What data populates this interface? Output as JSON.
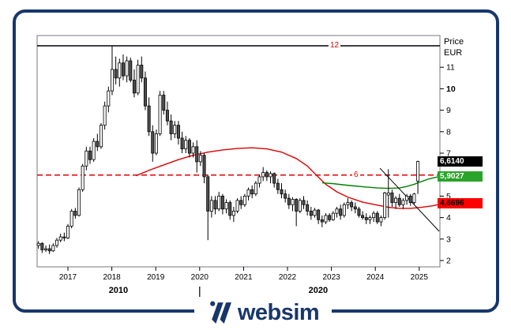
{
  "header": {
    "price_label": "Price",
    "currency_label": "EUR"
  },
  "footer": {
    "brand": "websim"
  },
  "colors": {
    "frame_navy": "#17376b",
    "plot_border": "#8e8e9a",
    "red": "#e00000",
    "green_line": "#008000",
    "candle_down_fill": "#4f4f4f",
    "candle_up_fill": "#ffffff"
  },
  "chart_data": {
    "type": "candlestick",
    "title": "",
    "unit": "EUR",
    "start_month": "2016-05",
    "y_axis": {
      "label": "Price",
      "unit": "EUR",
      "ticks": [
        11,
        10,
        9,
        8,
        7,
        5,
        4,
        3,
        2
      ],
      "bold_tick": 10,
      "range": [
        1.8,
        12.5
      ],
      "grid": false
    },
    "x_axis": {
      "year_ticks": [
        2017,
        2018,
        2019,
        2020,
        2021,
        2022,
        2023,
        2024,
        2025
      ],
      "decade_row": [
        {
          "label": "2010",
          "center_year": 2018.15
        },
        {
          "label": "2020",
          "center_year": 2022.7
        }
      ],
      "decade_tick_year": 2020
    },
    "levels": [
      {
        "label": "12",
        "value": 12,
        "style": "solid",
        "line_color": "#000000",
        "label_color": "#e00000"
      },
      {
        "label": "6",
        "value": 5.98,
        "style": "dashed",
        "line_color": "#e00000",
        "label_color": "#e00000"
      }
    ],
    "price_markers": [
      {
        "text": "6,6140",
        "value": 6.614,
        "bg": "#000000",
        "fg": "#ffffff"
      },
      {
        "text": "5,9027",
        "value": 5.9027,
        "bg": "#2aa32a",
        "fg": "#ffffff"
      },
      {
        "text": "4,6696",
        "value": 4.6696,
        "bg": "#ff0000",
        "fg": "#000000"
      }
    ],
    "candles": {
      "ohlc": [
        [
          2.7,
          2.9,
          2.55,
          2.8
        ],
        [
          2.8,
          2.85,
          2.35,
          2.5
        ],
        [
          2.5,
          2.7,
          2.4,
          2.55
        ],
        [
          2.55,
          2.75,
          2.3,
          2.45
        ],
        [
          2.45,
          2.8,
          2.4,
          2.7
        ],
        [
          2.7,
          3.05,
          2.6,
          2.95
        ],
        [
          2.95,
          3.25,
          2.85,
          3.1
        ],
        [
          3.1,
          3.3,
          2.9,
          3.05
        ],
        [
          3.05,
          3.7,
          3.0,
          3.6
        ],
        [
          3.6,
          4.4,
          3.5,
          4.3
        ],
        [
          4.3,
          4.45,
          3.95,
          4.1
        ],
        [
          4.1,
          5.4,
          4.05,
          5.3
        ],
        [
          5.3,
          6.5,
          5.2,
          6.4
        ],
        [
          6.4,
          7.3,
          6.2,
          7.1
        ],
        [
          7.1,
          7.3,
          6.5,
          6.7
        ],
        [
          6.7,
          7.7,
          6.6,
          7.55
        ],
        [
          7.55,
          7.9,
          7.1,
          7.3
        ],
        [
          7.3,
          8.4,
          7.2,
          8.3
        ],
        [
          8.3,
          9.4,
          8.1,
          9.2
        ],
        [
          9.2,
          10.1,
          8.9,
          9.9
        ],
        [
          9.9,
          12.0,
          9.7,
          10.9
        ],
        [
          10.9,
          11.5,
          10.2,
          10.5
        ],
        [
          10.5,
          11.4,
          10.1,
          11.2
        ],
        [
          11.2,
          11.6,
          10.4,
          10.6
        ],
        [
          10.6,
          11.5,
          10.3,
          11.3
        ],
        [
          11.3,
          11.45,
          10.3,
          10.4
        ],
        [
          10.4,
          10.9,
          9.6,
          9.8
        ],
        [
          9.8,
          11.35,
          9.7,
          11.1
        ],
        [
          11.1,
          11.5,
          10.3,
          10.5
        ],
        [
          10.5,
          10.8,
          9.0,
          9.2
        ],
        [
          9.2,
          9.6,
          7.8,
          8.0
        ],
        [
          8.0,
          8.3,
          6.6,
          7.0
        ],
        [
          7.0,
          8.1,
          6.9,
          7.9
        ],
        [
          7.9,
          9.9,
          7.8,
          9.7
        ],
        [
          9.7,
          9.9,
          8.8,
          9.0
        ],
        [
          9.0,
          9.4,
          8.3,
          8.5
        ],
        [
          8.5,
          8.8,
          7.6,
          7.9
        ],
        [
          7.9,
          8.5,
          7.7,
          8.3
        ],
        [
          8.3,
          8.5,
          7.4,
          7.7
        ],
        [
          7.7,
          8.0,
          7.0,
          7.2
        ],
        [
          7.2,
          7.8,
          7.0,
          7.6
        ],
        [
          7.6,
          7.7,
          6.8,
          7.0
        ],
        [
          7.0,
          7.5,
          6.8,
          7.3
        ],
        [
          7.3,
          7.6,
          6.1,
          6.6
        ],
        [
          6.6,
          7.1,
          6.4,
          6.9
        ],
        [
          6.9,
          7.0,
          5.6,
          5.9
        ],
        [
          5.9,
          6.0,
          2.95,
          4.3
        ],
        [
          4.3,
          5.0,
          4.0,
          4.8
        ],
        [
          4.8,
          5.0,
          4.15,
          4.4
        ],
        [
          4.4,
          5.2,
          4.3,
          5.0
        ],
        [
          5.0,
          5.1,
          4.15,
          4.4
        ],
        [
          4.4,
          4.85,
          4.2,
          4.7
        ],
        [
          4.7,
          4.8,
          3.9,
          4.1
        ],
        [
          4.1,
          4.5,
          3.8,
          4.3
        ],
        [
          4.3,
          4.9,
          4.2,
          4.8
        ],
        [
          4.8,
          5.0,
          4.4,
          4.6
        ],
        [
          4.6,
          5.1,
          4.5,
          5.0
        ],
        [
          5.0,
          5.4,
          4.8,
          5.3
        ],
        [
          5.3,
          5.5,
          4.9,
          5.1
        ],
        [
          5.1,
          5.7,
          5.0,
          5.6
        ],
        [
          5.6,
          6.0,
          5.4,
          5.9
        ],
        [
          5.9,
          6.35,
          5.7,
          6.1
        ],
        [
          6.1,
          6.2,
          5.7,
          5.9
        ],
        [
          5.9,
          6.15,
          5.6,
          6.05
        ],
        [
          6.05,
          6.1,
          5.4,
          5.6
        ],
        [
          5.6,
          5.8,
          5.1,
          5.3
        ],
        [
          5.3,
          5.6,
          4.9,
          5.1
        ],
        [
          5.1,
          5.3,
          4.7,
          4.9
        ],
        [
          4.9,
          5.1,
          4.4,
          4.6
        ],
        [
          4.6,
          4.95,
          4.3,
          4.85
        ],
        [
          4.85,
          4.9,
          3.6,
          4.3
        ],
        [
          4.3,
          4.9,
          4.2,
          4.8
        ],
        [
          4.8,
          5.0,
          4.4,
          4.6
        ],
        [
          4.6,
          4.8,
          4.1,
          4.3
        ],
        [
          4.3,
          4.5,
          3.9,
          4.1
        ],
        [
          4.1,
          4.45,
          4.0,
          4.35
        ],
        [
          4.35,
          4.4,
          3.7,
          3.9
        ],
        [
          3.9,
          4.1,
          3.55,
          3.8
        ],
        [
          3.8,
          4.2,
          3.7,
          4.1
        ],
        [
          4.1,
          4.2,
          3.8,
          3.9
        ],
        [
          3.9,
          4.3,
          3.85,
          4.2
        ],
        [
          4.2,
          4.5,
          4.0,
          4.4
        ],
        [
          4.4,
          4.6,
          3.9,
          4.1
        ],
        [
          4.1,
          4.7,
          4.0,
          4.6
        ],
        [
          4.6,
          4.9,
          4.4,
          4.7
        ],
        [
          4.7,
          4.8,
          4.3,
          4.5
        ],
        [
          4.5,
          4.7,
          4.2,
          4.4
        ],
        [
          4.4,
          4.5,
          4.0,
          4.1
        ],
        [
          4.1,
          4.3,
          3.9,
          4.0
        ],
        [
          4.0,
          4.2,
          3.7,
          3.9
        ],
        [
          3.9,
          4.1,
          3.7,
          4.0
        ],
        [
          4.0,
          4.3,
          3.8,
          4.2
        ],
        [
          4.2,
          4.3,
          3.7,
          3.8
        ],
        [
          3.8,
          4.1,
          3.6,
          4.0
        ],
        [
          4.0,
          5.2,
          3.9,
          5.15
        ],
        [
          5.05,
          6.25,
          4.0,
          5.15
        ],
        [
          5.15,
          5.3,
          4.5,
          4.7
        ],
        [
          4.7,
          5.0,
          4.4,
          4.9
        ],
        [
          4.9,
          5.1,
          4.5,
          4.6
        ],
        [
          4.6,
          4.9,
          4.4,
          4.8
        ],
        [
          4.8,
          5.1,
          4.6,
          5.0
        ],
        [
          5.0,
          5.1,
          4.55,
          4.7
        ],
        [
          4.7,
          5.15,
          4.6,
          5.1
        ],
        [
          5.7,
          6.65,
          5.1,
          6.614
        ]
      ]
    },
    "moving_averages": [
      {
        "name": "ma-long",
        "color": "#dd0000",
        "points": [
          [
            26.5,
            5.95
          ],
          [
            30,
            6.2
          ],
          [
            34,
            6.45
          ],
          [
            38,
            6.7
          ],
          [
            42,
            6.9
          ],
          [
            46,
            7.05
          ],
          [
            50,
            7.15
          ],
          [
            54,
            7.22
          ],
          [
            58,
            7.25
          ],
          [
            62,
            7.2
          ],
          [
            66,
            7.05
          ],
          [
            70,
            6.75
          ],
          [
            73,
            6.4
          ],
          [
            75.3,
            6.0
          ],
          [
            78,
            5.55
          ],
          [
            81,
            5.2
          ],
          [
            84,
            4.95
          ],
          [
            88,
            4.72
          ],
          [
            92,
            4.58
          ],
          [
            95,
            4.48
          ],
          [
            98,
            4.43
          ],
          [
            101,
            4.43
          ],
          [
            104,
            4.48
          ],
          [
            107,
            4.55
          ],
          [
            109,
            4.62
          ]
        ]
      },
      {
        "name": "ma-short",
        "color": "#008000",
        "points": [
          [
            77,
            5.62
          ],
          [
            80,
            5.58
          ],
          [
            83,
            5.52
          ],
          [
            86,
            5.47
          ],
          [
            89,
            5.42
          ],
          [
            92,
            5.38
          ],
          [
            95,
            5.36
          ],
          [
            98,
            5.38
          ],
          [
            100,
            5.45
          ],
          [
            102,
            5.55
          ],
          [
            104,
            5.68
          ],
          [
            106,
            5.8
          ],
          [
            108,
            5.88
          ],
          [
            109,
            5.9
          ]
        ]
      }
    ],
    "trendline": {
      "from": [
        92.7,
        6.3
      ],
      "to": [
        108.8,
        3.36
      ],
      "color": "#000000"
    },
    "legend": "none"
  }
}
